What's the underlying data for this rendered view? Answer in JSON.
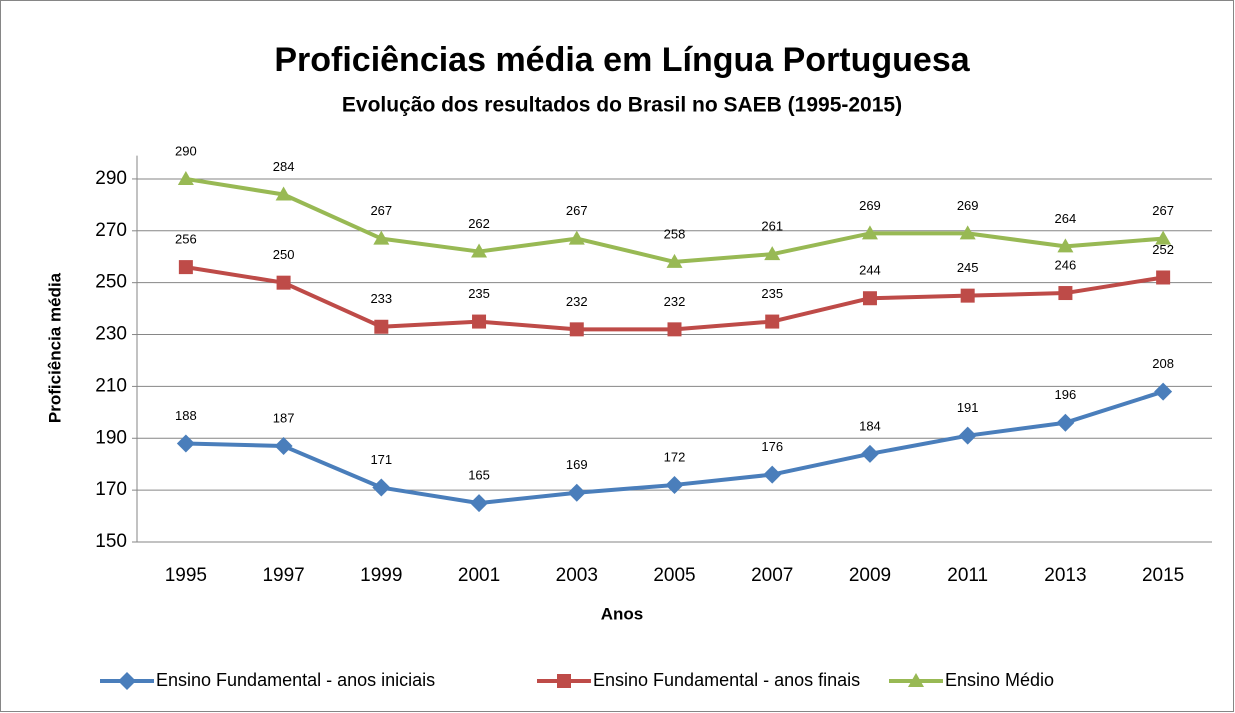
{
  "chart_data": {
    "type": "line",
    "title": "Proficiências média em Língua Portuguesa",
    "subtitle": "Evolução dos resultados do Brasil no SAEB (1995-2015)",
    "x_label": "Anos",
    "y_label": "Proficiência média",
    "categories": [
      "1995",
      "1997",
      "1999",
      "2001",
      "2003",
      "2005",
      "2007",
      "2009",
      "2011",
      "2013",
      "2015"
    ],
    "series": [
      {
        "name": "Ensino Fundamental - anos iniciais",
        "color": "#4a7ebb",
        "marker": "diamond",
        "values": [
          188,
          187,
          171,
          165,
          169,
          172,
          176,
          184,
          191,
          196,
          208
        ]
      },
      {
        "name": "Ensino Fundamental - anos finais",
        "color": "#be4b48",
        "marker": "square",
        "values": [
          256,
          250,
          233,
          235,
          232,
          232,
          235,
          244,
          245,
          246,
          252
        ]
      },
      {
        "name": "Ensino Médio",
        "color": "#98b954",
        "marker": "triangle",
        "values": [
          290,
          284,
          267,
          262,
          267,
          258,
          261,
          269,
          269,
          264,
          267
        ]
      }
    ],
    "ylim": [
      150,
      299
    ],
    "yticks": [
      150,
      170,
      190,
      210,
      230,
      250,
      270,
      290
    ],
    "grid": true,
    "legend": "bottom",
    "data_labels": true
  }
}
